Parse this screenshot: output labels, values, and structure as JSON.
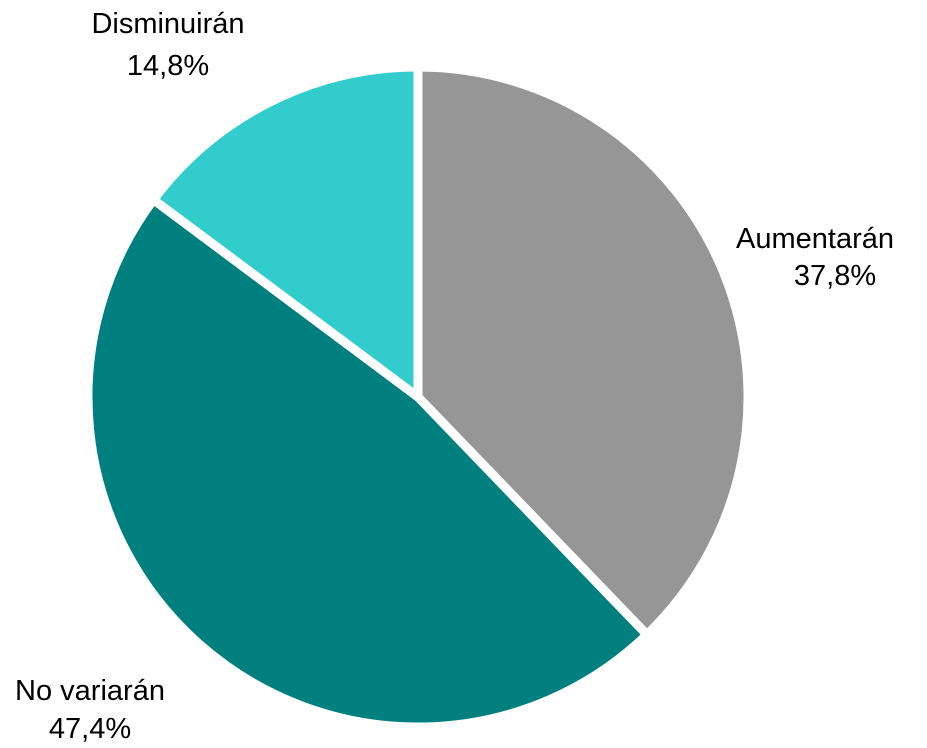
{
  "chart_data": {
    "type": "pie",
    "title": "",
    "slices": [
      {
        "label": "Aumentarán",
        "value": 37.8,
        "value_text": "37,8%",
        "color": "#969696"
      },
      {
        "label": "No variarán",
        "value": 47.4,
        "value_text": "47,4%",
        "color": "#007f7f"
      },
      {
        "label": "Disminuirán",
        "value": 14.8,
        "value_text": "14,8%",
        "color": "#33cccc"
      }
    ],
    "start_angle_deg": 0,
    "direction": "clockwise",
    "separator_color": "#ffffff",
    "legend": "none"
  }
}
